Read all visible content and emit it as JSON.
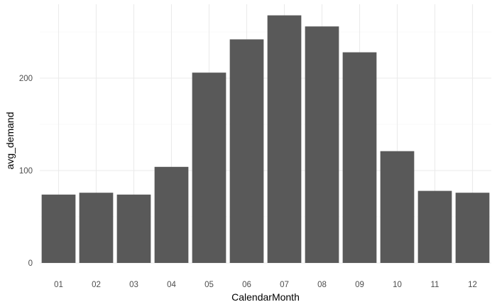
{
  "chart_data": {
    "type": "bar",
    "title": "",
    "xlabel": "CalendarMonth",
    "ylabel": "avg_demand",
    "categories": [
      "01",
      "02",
      "03",
      "04",
      "05",
      "06",
      "07",
      "08",
      "09",
      "10",
      "11",
      "12"
    ],
    "values": [
      74,
      76,
      74,
      104,
      206,
      242,
      268,
      256,
      228,
      121,
      78,
      76
    ],
    "ylim": [
      0,
      280
    ],
    "yticks": [
      0,
      100,
      200
    ],
    "yticks_labels": [
      "0",
      "100",
      "200"
    ],
    "grid": true,
    "legend": "none",
    "bar_color": "#595959"
  }
}
